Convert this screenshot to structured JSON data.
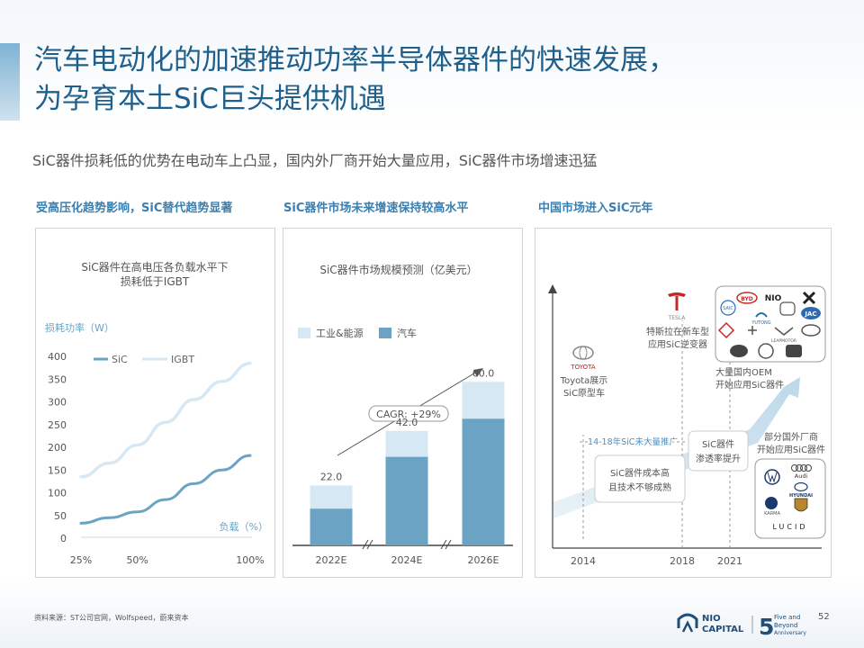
{
  "header": {
    "title_line1": "汽车电动化的加速推动功率半导体器件的快速发展，",
    "title_line2": "为孕育本土SiC巨头提供机遇",
    "subtitle": "SiC器件损耗低的优势在电动车上凸显，国内外厂商开始大量应用，SiC器件市场增速迅猛"
  },
  "sections": [
    {
      "heading": "受高压化趋势影响，SiC替代趋势显著"
    },
    {
      "heading": "SiC器件市场未来增速保持较高水平"
    },
    {
      "heading": "中国市场进入SiC元年"
    }
  ],
  "chart1": {
    "title_line1": "SiC器件在高电压各负载水平下",
    "title_line2": "损耗低于IGBT",
    "ylabel": "损耗功率（W）",
    "xlabel": "负载（%）",
    "legend": {
      "sic": "SiC",
      "igbt": "IGBT"
    },
    "colors": {
      "sic": "#6aa3c4",
      "igbt": "#d6e8f3"
    }
  },
  "chart2": {
    "title": "SiC器件市场规模预测（亿美元）",
    "legend": {
      "industrial": "工业&能源",
      "auto": "汽车"
    },
    "cagr": "CAGR: +29%",
    "colors": {
      "industrial": "#d6e8f3",
      "auto": "#6aa3c4"
    }
  },
  "chart3": {
    "years": [
      "2014",
      "2018",
      "2021"
    ],
    "toyota_label_line1": "Toyota展示",
    "toyota_label_line2": "SiC原型车",
    "toyota_logo_text": "TOYOTA",
    "tesla_logo_text": "TESLA",
    "tesla_label_line1": "特斯拉在新车型",
    "tesla_label_line2": "应用SiC逆变器",
    "period_label": "14-18年SiC未大量推广",
    "box1_line1": "SiC器件成本高",
    "box1_line2": "且技术不够成熟",
    "box2_line1": "SiC器件",
    "box2_line2": "渗透率提升",
    "oem_cn_line1": "大量国内OEM",
    "oem_cn_line2": "开始应用SiC器件",
    "oem_foreign_line1": "部分国外厂商",
    "oem_foreign_line2": "开始应用SiC器件",
    "domestic_logos": [
      "BYD",
      "NIO",
      "SAIC",
      "YUTONG",
      "JAC",
      "LEAPMOTOR"
    ],
    "foreign_logos": [
      "Audi",
      "HYUNDAI",
      "KARMA",
      "LUCID"
    ]
  },
  "chart_data": [
    {
      "type": "line",
      "title": "SiC器件在高电压各负载水平下损耗低于IGBT",
      "xlabel": "负载（%）",
      "ylabel": "损耗功率（W）",
      "x_ticks": [
        "25%",
        "50%",
        "100%"
      ],
      "y_ticks": [
        0,
        50,
        100,
        150,
        200,
        250,
        300,
        350,
        400
      ],
      "ylim": [
        0,
        400
      ],
      "series": [
        {
          "name": "SiC",
          "x": [
            25,
            37.5,
            50,
            62.5,
            75,
            87.5,
            100
          ],
          "values": [
            33,
            45,
            58,
            85,
            120,
            150,
            182
          ]
        },
        {
          "name": "IGBT",
          "x": [
            25,
            37.5,
            50,
            62.5,
            75,
            87.5,
            100
          ],
          "values": [
            135,
            165,
            205,
            255,
            305,
            345,
            385
          ]
        }
      ],
      "legend_position": "top-left",
      "grid": false
    },
    {
      "type": "bar",
      "title": "SiC器件市场规模预测（亿美元）",
      "categories": [
        "2022E",
        "2024E",
        "2026E"
      ],
      "series": [
        {
          "name": "汽车",
          "values": [
            13.5,
            32.5,
            46.5
          ]
        },
        {
          "name": "工业&能源",
          "values": [
            8.5,
            9.5,
            13.5
          ]
        }
      ],
      "totals": [
        "22.0",
        "42.0",
        "60.0"
      ],
      "stacked": true,
      "annotation": "CAGR: +29%",
      "ylim": [
        0,
        70
      ]
    }
  ],
  "footer": {
    "source": "资料来源：ST公司官网，Wolfspeed，蔚来资本",
    "brand_line1": "NIO",
    "brand_line2": "CAPITAL",
    "anniv_line1": "Five and",
    "anniv_line2": "Beyond",
    "anniv_line3": "Anniversary",
    "page": "52"
  }
}
